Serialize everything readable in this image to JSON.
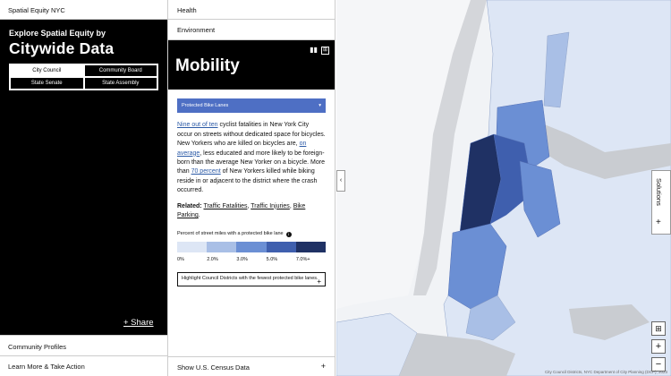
{
  "site": {
    "name": "Spatial Equity NYC"
  },
  "hero": {
    "subtitle": "Explore Spatial Equity by",
    "title": "Citywide Data",
    "geographies": [
      "City Council",
      "Community Board",
      "State Senate",
      "State Assembly"
    ],
    "active_geography": "City Council",
    "share_label": "+ Share"
  },
  "left_footer": {
    "community_profiles": "Community Profiles",
    "learn_more": "Learn More & Take Action"
  },
  "categories": {
    "health": "Health",
    "environment": "Environment"
  },
  "section": {
    "title": "Mobility",
    "icons": [
      "bar-chart-icon",
      "map-icon"
    ]
  },
  "metric_select": {
    "value": "Protected Bike Lanes",
    "caret": "▾"
  },
  "description": {
    "link1": "Nine out of ten",
    "text1": " cyclist fatalities in New York City occur on streets without dedicated space for bicycles. New Yorkers who are killed on bicycles are, ",
    "link2": "on average",
    "text2": ", less educated and more likely to be foreign-born than the average New Yorker on a bicycle. More than ",
    "link3": "70 percent",
    "text3": " of New Yorkers killed while biking reside in or adjacent to the district where the crash occurred."
  },
  "related": {
    "label": "Related:",
    "links": [
      "Traffic Fatalities",
      "Traffic Injuries",
      "Bike Parking"
    ]
  },
  "legend": {
    "title": "Percent of street miles with a protected bike lane",
    "colors": [
      "#dde6f5",
      "#a9bfe6",
      "#6b8fd4",
      "#3f5fae",
      "#1f3164"
    ],
    "labels": [
      "0%",
      "2.0%",
      "3.0%",
      "5.0%",
      "7.0%+"
    ]
  },
  "highlight": {
    "text": "Highlight Council Districts with the fewest protected bike lanes.",
    "plus": "+"
  },
  "census": {
    "label": "Show U.S. Census Data",
    "plus": "+"
  },
  "map": {
    "collapse": "‹",
    "solutions": "Solutions",
    "solutions_plus": "+",
    "zoom_in": "+",
    "zoom_out": "−",
    "transit_icon": "transit-icon",
    "attribution": "City Council Districts, NYC Department of City Planning (DCP), 2023"
  }
}
